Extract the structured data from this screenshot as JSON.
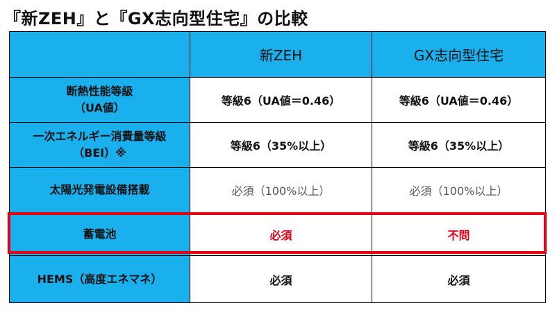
{
  "title": "『新ZEH』と『GX志向型住宅』の比較",
  "header": {
    "corner": "",
    "col1": "新ZEH",
    "col2": "GX志向型住宅"
  },
  "rows": [
    {
      "label_line1": "断熱性能等級",
      "label_line2": "（UA値）",
      "col1": "等級6（UA値＝0.46）",
      "col2": "等級6（UA値＝0.46）"
    },
    {
      "label_line1": "一次エネルギー消費量等級",
      "label_line2": "（BEI）※",
      "col1": "等級6（35%以上）",
      "col2": "等級6（35%以上）"
    },
    {
      "label_line1": "太陽光発電設備搭載",
      "label_line2": "",
      "col1": "必須（100%以上）",
      "col2": "必須（100%以上）"
    },
    {
      "label_line1": "蓄電池",
      "label_line2": "",
      "col1": "必須",
      "col2": "不問"
    },
    {
      "label_line1": "HEMS（高度エネマネ）",
      "label_line2": "",
      "col1": "必須",
      "col2": "必須"
    }
  ],
  "colors": {
    "header_bg": "#1ab0ee",
    "highlight_border": "#e60012",
    "accent_text": "#e40012"
  }
}
